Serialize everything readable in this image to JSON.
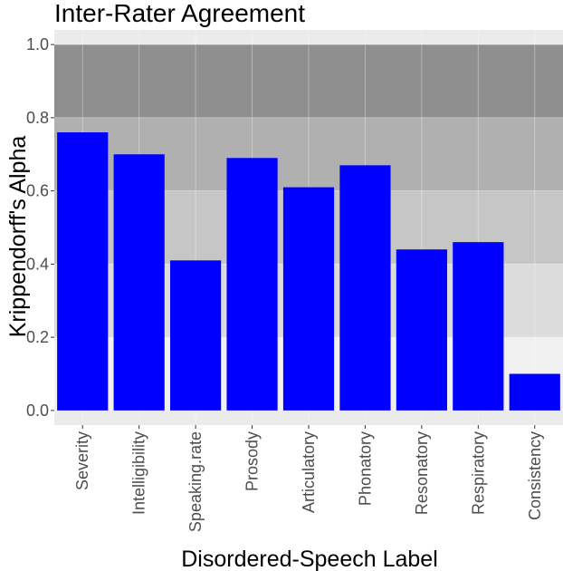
{
  "chart_data": {
    "type": "bar",
    "title": "Inter-Rater Agreement",
    "xlabel": "Disordered-Speech Label",
    "ylabel": "Krippendorff's Alpha",
    "categories": [
      "Severity",
      "Intelligibility",
      "Speaking.rate",
      "Prosody",
      "Articulatory",
      "Phonatory",
      "Resonatory",
      "Respiratory",
      "Consistency"
    ],
    "values": [
      0.76,
      0.7,
      0.41,
      0.69,
      0.61,
      0.67,
      0.44,
      0.46,
      0.1
    ],
    "ylim": [
      -0.04,
      1.04
    ],
    "yticks": [
      0.0,
      0.2,
      0.4,
      0.6,
      0.8,
      1.0
    ],
    "ytick_labels": [
      "0.0",
      "0.2",
      "0.4",
      "0.6",
      "0.8",
      "1.0"
    ],
    "bands": [
      {
        "from": 0.0,
        "to": 0.2,
        "color": "#f2f2f2"
      },
      {
        "from": 0.2,
        "to": 0.4,
        "color": "#d9d9d9"
      },
      {
        "from": 0.4,
        "to": 0.6,
        "color": "#bfbfbf"
      },
      {
        "from": 0.6,
        "to": 0.8,
        "color": "#a6a6a6"
      },
      {
        "from": 0.8,
        "to": 1.0,
        "color": "#7f7f7f"
      }
    ],
    "bar_color": "#0000ff",
    "panel_background": "#ebebeb",
    "grid": true,
    "legend": "none"
  }
}
